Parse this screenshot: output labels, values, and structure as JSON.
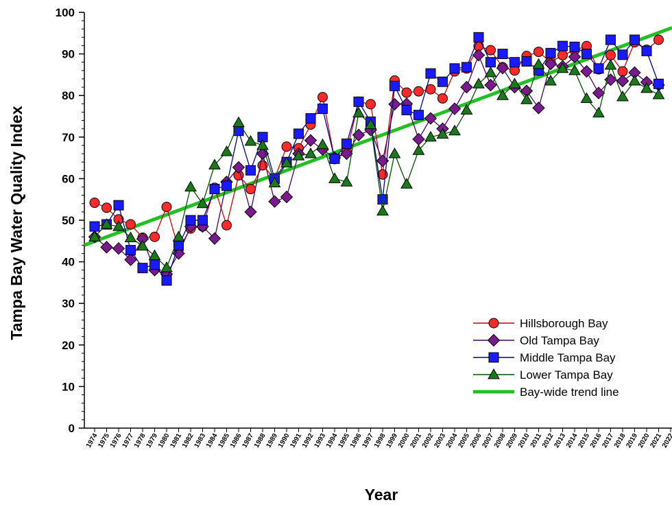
{
  "chart_data": {
    "type": "line",
    "xlabel": "Year",
    "ylabel": "Tampa Bay Water Quality Index",
    "ylim": [
      0,
      100
    ],
    "yticks": [
      0,
      10,
      20,
      30,
      40,
      50,
      60,
      70,
      80,
      90,
      100
    ],
    "xlim": [
      1974,
      2022
    ],
    "x": [
      1974,
      1975,
      1976,
      1977,
      1978,
      1979,
      1980,
      1981,
      1982,
      1983,
      1984,
      1985,
      1986,
      1987,
      1988,
      1989,
      1990,
      1991,
      1992,
      1993,
      1994,
      1995,
      1996,
      1997,
      1998,
      1999,
      2000,
      2001,
      2002,
      2003,
      2004,
      2005,
      2006,
      2007,
      2008,
      2009,
      2010,
      2011,
      2012,
      2013,
      2014,
      2015,
      2016,
      2017,
      2018,
      2019,
      2020,
      2021
    ],
    "xtick_labels": [
      "1974",
      "1975",
      "1976",
      "1977",
      "1978",
      "1979",
      "1980",
      "1981",
      "1982",
      "1983",
      "1984",
      "1985",
      "1986",
      "1987",
      "1988",
      "1989",
      "1990",
      "1991",
      "1992",
      "1993",
      "1994",
      "1995",
      "1996",
      "1997",
      "1998",
      "1999",
      "2000",
      "2001",
      "2002",
      "2003",
      "2004",
      "2005",
      "2006",
      "2007",
      "2008",
      "2009",
      "2010",
      "2011",
      "2012",
      "2013",
      "2014",
      "2015",
      "2016",
      "2017",
      "2018",
      "2019",
      "2020",
      "2021",
      "2022"
    ],
    "legend_position": "lower-right",
    "series": [
      {
        "name": "Hillsborough Bay",
        "color": "#cc0000",
        "fill": "#ff2a2a",
        "marker": "circle",
        "values": [
          54.2,
          53.0,
          50.2,
          49.0,
          45.8,
          46.0,
          53.2,
          43.0,
          48.0,
          48.5,
          57.8,
          48.8,
          60.8,
          57.5,
          63.2,
          60.0,
          67.7,
          67.3,
          73.0,
          79.6,
          64.7,
          66.5,
          78.5,
          77.9,
          61.0,
          83.6,
          80.7,
          81.0,
          81.5,
          79.3,
          85.8,
          86.5,
          91.9,
          90.9,
          86.8,
          86.0,
          89.5,
          90.5,
          88.0,
          89.7,
          90.9,
          91.9,
          86.3,
          89.7,
          85.8,
          92.8,
          91.0,
          93.4
        ]
      },
      {
        "name": "Old Tampa Bay",
        "color": "#4b0060",
        "fill": "#7a1a8e",
        "marker": "diamond",
        "values": [
          46.0,
          43.5,
          43.2,
          40.5,
          45.5,
          38.0,
          37.0,
          42.0,
          48.5,
          48.5,
          45.6,
          59.2,
          62.7,
          52.0,
          66.0,
          54.5,
          55.6,
          66.0,
          69.2,
          67.0,
          65.0,
          66.0,
          70.5,
          71.7,
          64.3,
          77.9,
          78.0,
          69.5,
          74.5,
          72.0,
          76.8,
          82.0,
          89.7,
          82.5,
          86.6,
          82.0,
          81.1,
          77.0,
          87.6,
          87.0,
          89.3,
          85.8,
          80.6,
          83.8,
          83.5,
          85.5,
          83.2,
          82.5
        ]
      },
      {
        "name": "Middle Tampa Bay",
        "color": "#00008b",
        "fill": "#1a1aff",
        "marker": "square",
        "values": [
          48.5,
          49.0,
          53.6,
          42.8,
          38.5,
          39.3,
          35.5,
          44.0,
          50.0,
          50.0,
          57.5,
          58.3,
          71.5,
          62.0,
          70.0,
          60.0,
          64.0,
          70.8,
          74.5,
          76.8,
          64.8,
          68.4,
          78.5,
          73.7,
          55.0,
          82.3,
          76.5,
          75.3,
          85.3,
          83.3,
          86.5,
          86.8,
          94.0,
          88.0,
          90.0,
          88.0,
          88.2,
          86.0,
          90.2,
          91.9,
          91.7,
          90.0,
          86.5,
          93.4,
          89.8,
          93.4,
          90.7,
          82.8
        ]
      },
      {
        "name": "Lower Tampa Bay",
        "color": "#005000",
        "fill": "#1a7a1a",
        "marker": "triangle",
        "values": [
          46.0,
          49.0,
          48.5,
          45.8,
          43.8,
          41.5,
          38.6,
          46.0,
          58.0,
          54.0,
          63.3,
          66.5,
          73.5,
          69.0,
          68.0,
          59.0,
          63.8,
          65.5,
          66.0,
          68.2,
          60.0,
          59.2,
          75.8,
          73.0,
          52.2,
          66.0,
          58.7,
          66.8,
          70.0,
          70.7,
          71.5,
          76.5,
          82.8,
          85.5,
          80.0,
          82.8,
          79.0,
          87.5,
          83.5,
          86.5,
          86.0,
          79.3,
          75.8,
          87.3,
          79.7,
          83.5,
          81.7,
          80.2
        ]
      }
    ],
    "trend": {
      "name": "Bay-wide trend line",
      "color": "#22c022",
      "x": [
        1974,
        2022
      ],
      "values": [
        44.0,
        96.3
      ]
    }
  }
}
